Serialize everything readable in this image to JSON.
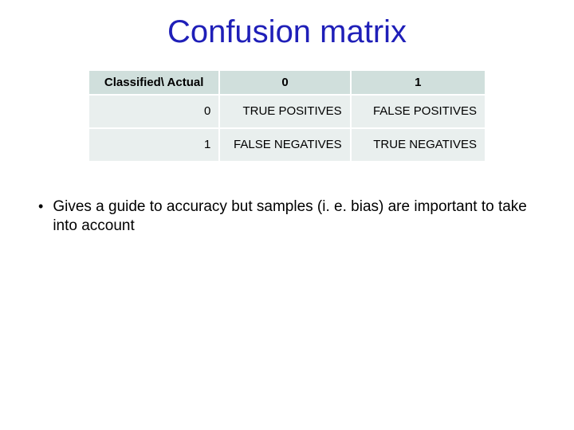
{
  "title": "Confusion matrix",
  "table": {
    "columns": [
      "Classified\\ Actual",
      "0",
      "1"
    ],
    "rows": [
      {
        "label": "0",
        "cells": [
          "TRUE POSITIVES",
          "FALSE POSITIVES"
        ]
      },
      {
        "label": "1",
        "cells": [
          "FALSE NEGATIVES",
          "TRUE NEGATIVES"
        ]
      }
    ],
    "header_bg": "#d0dfdc",
    "cell_bg": "#e9efee",
    "border_color": "#ffffff",
    "header_fontsize": 15,
    "cell_fontsize": 15,
    "column_widths_pct": [
      33,
      33,
      34
    ]
  },
  "bullets": [
    "Gives a guide to accuracy but samples (i. e. bias) are important to take into account"
  ],
  "colors": {
    "title_color": "#1f1fb8",
    "background": "#ffffff",
    "text": "#000000"
  },
  "typography": {
    "title_font": "Comic Sans MS",
    "body_font": "Arial",
    "title_fontsize": 40,
    "bullet_fontsize": 19
  }
}
